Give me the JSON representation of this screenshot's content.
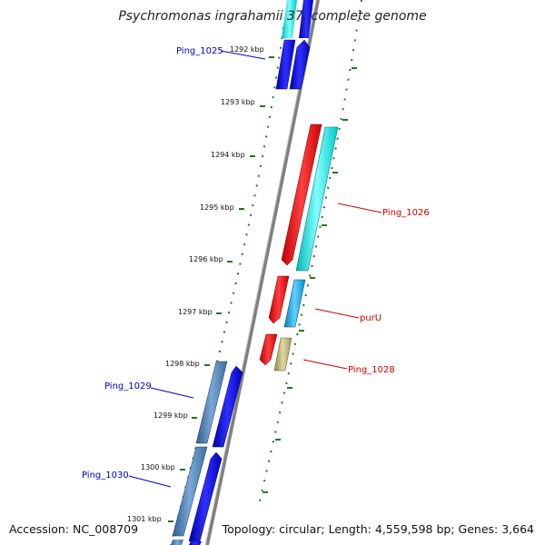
{
  "title": "Psychromonas ingrahamii 37, complete genome",
  "accession": "Accession: NC_008709",
  "topology": "Topology: circular; Length: 4,559,598 bp; Genes: 3,664",
  "ticks": [
    "1292 kbp",
    "1293 kbp",
    "1294 kbp",
    "1295 kbp",
    "1296 kbp",
    "1297 kbp",
    "1298 kbp",
    "1299 kbp",
    "1300 kbp",
    "1301 kbp"
  ],
  "gene_labels": [
    "Ping_1025",
    "Ping_1026",
    "purU",
    "Ping_1028",
    "Ping_1029",
    "Ping_1030"
  ],
  "colors": {
    "backbone": "#888888",
    "tick": "#1a7a1a",
    "label_blue": "#0000c0",
    "label_red": "#cc0000",
    "gene_blue": "#0000ee",
    "gene_cyan": "#00e0e0",
    "gene_red": "#ee0000",
    "gene_steel": "#4a7fb0",
    "gene_skyblue": "#00aaee",
    "gene_khaki": "#b8b070"
  }
}
